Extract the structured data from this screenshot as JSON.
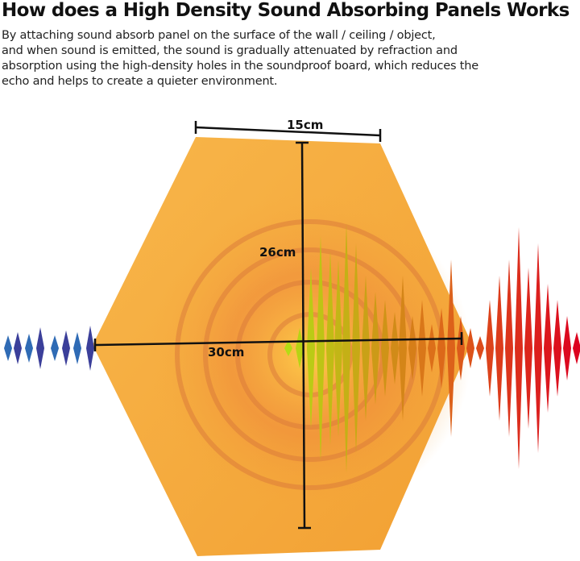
{
  "header": {
    "title": "How does a High Density Sound Absorbing Panels Works",
    "description": [
      "By attaching sound absorb panel on the surface of the wall / ceiling / object,",
      "and when sound is emitted, the sound is gradually attenuated by refraction and",
      "absorption using the high-density holes in the soundproof board, which reduces the",
      "echo and helps to create a quieter environment."
    ]
  },
  "dimensions": {
    "top_width": "15cm",
    "height": "26cm",
    "width": "30cm"
  }
}
